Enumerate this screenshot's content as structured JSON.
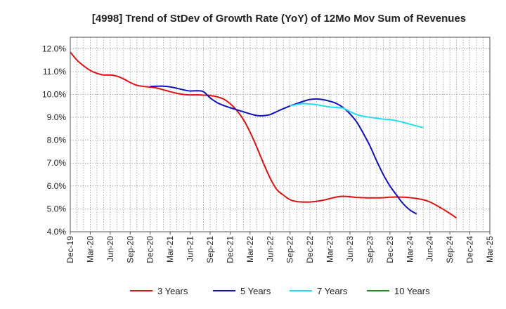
{
  "chart_data": {
    "type": "line",
    "title": "[4998]  Trend of StDev of Growth Rate (YoY) of 12Mo Mov Sum of Revenues",
    "xlabel": "",
    "ylabel": "",
    "ylim": [
      4.0,
      12.5
    ],
    "y_ticks": [
      4.0,
      5.0,
      6.0,
      7.0,
      8.0,
      9.0,
      10.0,
      11.0,
      12.0
    ],
    "y_tick_labels": [
      "4.0%",
      "5.0%",
      "6.0%",
      "7.0%",
      "8.0%",
      "9.0%",
      "10.0%",
      "11.0%",
      "12.0%"
    ],
    "x_tick_labels": [
      "Dec-19",
      "Mar-20",
      "Jun-20",
      "Sep-20",
      "Dec-20",
      "Mar-21",
      "Jun-21",
      "Sep-21",
      "Dec-21",
      "Mar-22",
      "Jun-22",
      "Sep-22",
      "Dec-22",
      "Mar-23",
      "Jun-23",
      "Sep-23",
      "Dec-23",
      "Mar-24",
      "Jun-24",
      "Sep-24",
      "Dec-24",
      "Mar-25"
    ],
    "x_months_total": 63,
    "grid": true,
    "legend_position": "bottom",
    "series": [
      {
        "name": "3 Years",
        "color": "#dd1111",
        "points": [
          [
            0,
            11.85
          ],
          [
            1,
            11.5
          ],
          [
            2,
            11.25
          ],
          [
            3,
            11.05
          ],
          [
            4,
            10.92
          ],
          [
            5,
            10.85
          ],
          [
            6,
            10.85
          ],
          [
            7,
            10.8
          ],
          [
            8,
            10.68
          ],
          [
            9,
            10.52
          ],
          [
            10,
            10.4
          ],
          [
            11,
            10.35
          ],
          [
            12,
            10.32
          ],
          [
            13,
            10.28
          ],
          [
            14,
            10.2
          ],
          [
            15,
            10.12
          ],
          [
            16,
            10.05
          ],
          [
            17,
            10.0
          ],
          [
            18,
            9.98
          ],
          [
            19,
            9.98
          ],
          [
            20,
            9.97
          ],
          [
            21,
            9.95
          ],
          [
            22,
            9.9
          ],
          [
            23,
            9.8
          ],
          [
            24,
            9.6
          ],
          [
            25,
            9.3
          ],
          [
            26,
            8.9
          ],
          [
            27,
            8.35
          ],
          [
            28,
            7.7
          ],
          [
            29,
            7.0
          ],
          [
            30,
            6.35
          ],
          [
            31,
            5.85
          ],
          [
            32,
            5.6
          ],
          [
            33,
            5.4
          ],
          [
            34,
            5.32
          ],
          [
            35,
            5.3
          ],
          [
            36,
            5.3
          ],
          [
            37,
            5.33
          ],
          [
            38,
            5.38
          ],
          [
            39,
            5.45
          ],
          [
            40,
            5.52
          ],
          [
            41,
            5.55
          ],
          [
            42,
            5.53
          ],
          [
            43,
            5.5
          ],
          [
            44,
            5.49
          ],
          [
            45,
            5.48
          ],
          [
            46,
            5.48
          ],
          [
            47,
            5.49
          ],
          [
            48,
            5.51
          ],
          [
            49,
            5.52
          ],
          [
            50,
            5.51
          ],
          [
            51,
            5.49
          ],
          [
            52,
            5.45
          ],
          [
            53,
            5.4
          ],
          [
            54,
            5.3
          ],
          [
            55,
            5.15
          ],
          [
            56,
            4.98
          ],
          [
            57,
            4.8
          ],
          [
            58,
            4.6
          ]
        ]
      },
      {
        "name": "5 Years",
        "color": "#1111bb",
        "points": [
          [
            12,
            10.35
          ],
          [
            13,
            10.36
          ],
          [
            14,
            10.36
          ],
          [
            15,
            10.33
          ],
          [
            16,
            10.27
          ],
          [
            17,
            10.2
          ],
          [
            18,
            10.15
          ],
          [
            19,
            10.16
          ],
          [
            20,
            10.12
          ],
          [
            21,
            9.85
          ],
          [
            22,
            9.65
          ],
          [
            23,
            9.52
          ],
          [
            24,
            9.42
          ],
          [
            25,
            9.33
          ],
          [
            26,
            9.24
          ],
          [
            27,
            9.15
          ],
          [
            28,
            9.08
          ],
          [
            29,
            9.07
          ],
          [
            30,
            9.12
          ],
          [
            31,
            9.25
          ],
          [
            32,
            9.38
          ],
          [
            33,
            9.5
          ],
          [
            34,
            9.6
          ],
          [
            35,
            9.7
          ],
          [
            36,
            9.78
          ],
          [
            37,
            9.8
          ],
          [
            38,
            9.77
          ],
          [
            39,
            9.7
          ],
          [
            40,
            9.6
          ],
          [
            41,
            9.42
          ],
          [
            42,
            9.15
          ],
          [
            43,
            8.8
          ],
          [
            44,
            8.3
          ],
          [
            45,
            7.75
          ],
          [
            46,
            7.1
          ],
          [
            47,
            6.5
          ],
          [
            48,
            6.0
          ],
          [
            49,
            5.6
          ],
          [
            50,
            5.22
          ],
          [
            51,
            4.95
          ],
          [
            52,
            4.78
          ]
        ]
      },
      {
        "name": "7 Years",
        "color": "#22ddee",
        "points": [
          [
            33,
            9.5
          ],
          [
            34,
            9.56
          ],
          [
            35,
            9.6
          ],
          [
            36,
            9.58
          ],
          [
            37,
            9.55
          ],
          [
            38,
            9.5
          ],
          [
            39,
            9.45
          ],
          [
            40,
            9.43
          ],
          [
            41,
            9.4
          ],
          [
            42,
            9.25
          ],
          [
            43,
            9.12
          ],
          [
            44,
            9.05
          ],
          [
            45,
            9.0
          ],
          [
            46,
            8.96
          ],
          [
            47,
            8.92
          ],
          [
            48,
            8.9
          ],
          [
            49,
            8.85
          ],
          [
            50,
            8.78
          ],
          [
            51,
            8.7
          ],
          [
            52,
            8.62
          ],
          [
            53,
            8.55
          ]
        ]
      },
      {
        "name": "10 Years",
        "color": "#228822",
        "points": []
      }
    ]
  }
}
